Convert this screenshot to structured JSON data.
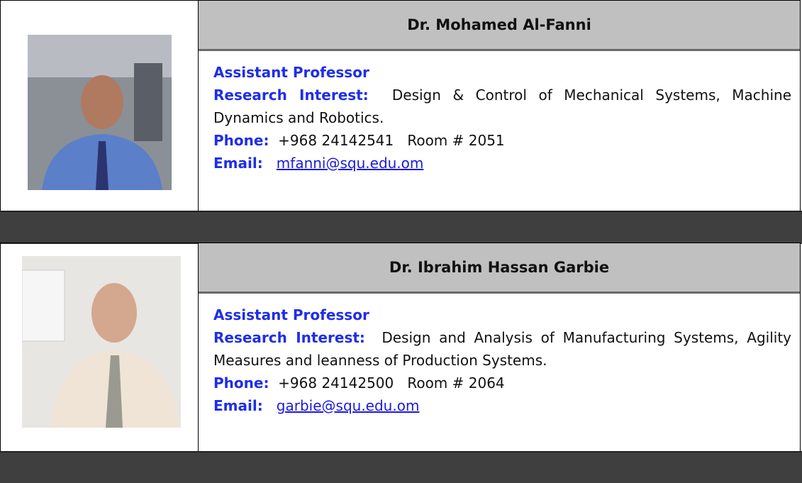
{
  "people": [
    {
      "name": "Dr. Mohamed Al-Fanni",
      "title": "Assistant Professor",
      "research_label": "Research Interest:",
      "research": "Design & Control of Mechanical Systems, Machine Dynamics and Robotics.",
      "phone_label": "Phone:",
      "phone": "+968 24142541",
      "room": "Room # 2051",
      "email_label": "Email:",
      "email": "mfanni@squ.edu.om"
    },
    {
      "name": "Dr. Ibrahim Hassan Garbie",
      "title": "Assistant Professor",
      "research_label": "Research Interest:",
      "research": "Design and Analysis of Manufacturing Systems, Agility Measures and leanness of Production Systems.",
      "phone_label": "Phone:",
      "phone": "+968 24142500",
      "room": "Room # 2064",
      "email_label": "Email:",
      "email": "garbie@squ.edu.om"
    }
  ]
}
